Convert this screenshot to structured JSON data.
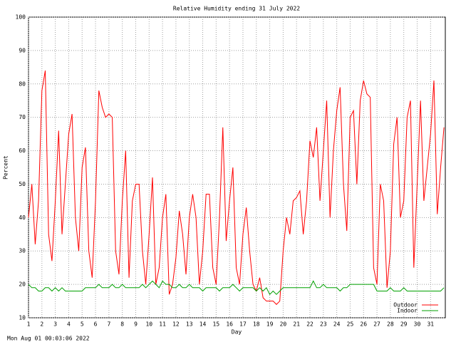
{
  "chart_data": {
    "type": "line",
    "title": "Relative Humidity ending 31 July 2022",
    "x_label": "Day",
    "y_label": "Percent",
    "footer": "Mon Aug 01 00:03:06 2022",
    "x": [
      1,
      1.25,
      1.5,
      1.75,
      2,
      2.25,
      2.5,
      2.75,
      3,
      3.25,
      3.5,
      3.75,
      4,
      4.25,
      4.5,
      4.75,
      5,
      5.25,
      5.5,
      5.75,
      6,
      6.25,
      6.5,
      6.75,
      7,
      7.25,
      7.5,
      7.75,
      8,
      8.25,
      8.5,
      8.75,
      9,
      9.25,
      9.5,
      9.75,
      10,
      10.25,
      10.5,
      10.75,
      11,
      11.25,
      11.5,
      11.75,
      12,
      12.25,
      12.5,
      12.75,
      13,
      13.25,
      13.5,
      13.75,
      14,
      14.25,
      14.5,
      14.75,
      15,
      15.25,
      15.5,
      15.75,
      16,
      16.25,
      16.5,
      16.75,
      17,
      17.25,
      17.5,
      17.75,
      18,
      18.25,
      18.5,
      18.75,
      19,
      19.25,
      19.5,
      19.75,
      20,
      20.25,
      20.5,
      20.75,
      21,
      21.25,
      21.5,
      21.75,
      22,
      22.25,
      22.5,
      22.75,
      23,
      23.25,
      23.5,
      23.75,
      24,
      24.25,
      24.5,
      24.75,
      25,
      25.25,
      25.5,
      25.75,
      26,
      26.25,
      26.5,
      26.75,
      27,
      27.25,
      27.5,
      27.75,
      28,
      28.25,
      28.5,
      28.75,
      29,
      29.25,
      29.5,
      29.75,
      30,
      30.25,
      30.5,
      30.75,
      31,
      31.25,
      31.5,
      31.75,
      32
    ],
    "series": [
      {
        "name": "Outdoor",
        "color": "#ff0000",
        "values": [
          40,
          50,
          32,
          45,
          78,
          84,
          35,
          27,
          45,
          66,
          35,
          50,
          65,
          71,
          40,
          30,
          55,
          61,
          30,
          22,
          45,
          78,
          73,
          70,
          71,
          70,
          30,
          23,
          45,
          60,
          22,
          45,
          50,
          50,
          30,
          20,
          35,
          52,
          20,
          25,
          40,
          47,
          17,
          20,
          28,
          42,
          35,
          23,
          40,
          47,
          40,
          20,
          30,
          47,
          47,
          25,
          20,
          40,
          67,
          33,
          45,
          55,
          25,
          20,
          35,
          43,
          30,
          20,
          18,
          22,
          16,
          15,
          15,
          15,
          14,
          15,
          30,
          40,
          35,
          45,
          46,
          48,
          35,
          45,
          63,
          58,
          67,
          45,
          60,
          75,
          40,
          60,
          72,
          79,
          50,
          36,
          70,
          72,
          50,
          75,
          81,
          77,
          76,
          25,
          20,
          50,
          45,
          19,
          30,
          62,
          70,
          40,
          45,
          70,
          75,
          25,
          50,
          75,
          45,
          55,
          65,
          81,
          41,
          55,
          67
        ]
      },
      {
        "name": "Indoor",
        "color": "#00a000",
        "values": [
          20,
          19,
          19,
          18,
          18,
          19,
          19,
          18,
          19,
          18,
          19,
          18,
          18,
          18,
          18,
          18,
          18,
          19,
          19,
          19,
          19,
          20,
          19,
          19,
          19,
          20,
          19,
          19,
          20,
          19,
          19,
          19,
          19,
          19,
          20,
          19,
          20,
          21,
          20,
          19,
          21,
          20,
          20,
          19,
          19,
          20,
          19,
          19,
          20,
          19,
          19,
          19,
          18,
          19,
          19,
          19,
          19,
          18,
          19,
          19,
          19,
          20,
          19,
          18,
          19,
          19,
          19,
          19,
          18,
          19,
          18,
          19,
          17,
          18,
          17,
          18,
          19,
          19,
          19,
          19,
          19,
          19,
          19,
          19,
          19,
          21,
          19,
          19,
          20,
          19,
          19,
          19,
          19,
          18,
          19,
          19,
          20,
          20,
          20,
          20,
          20,
          20,
          20,
          20,
          18,
          18,
          18,
          18,
          19,
          18,
          18,
          18,
          19,
          18,
          18,
          18,
          18,
          18,
          18,
          18,
          18,
          18,
          18,
          18,
          19
        ]
      }
    ],
    "xlim": [
      1,
      32.1
    ],
    "ylim": [
      10,
      100
    ],
    "xticks": [
      1,
      2,
      3,
      4,
      5,
      6,
      7,
      8,
      9,
      10,
      11,
      12,
      13,
      14,
      15,
      16,
      17,
      18,
      19,
      20,
      21,
      22,
      23,
      24,
      25,
      26,
      27,
      28,
      29,
      30,
      31
    ],
    "yticks": [
      10,
      20,
      30,
      40,
      50,
      60,
      70,
      80,
      90,
      100
    ],
    "grid": true,
    "legend": "lower right"
  }
}
